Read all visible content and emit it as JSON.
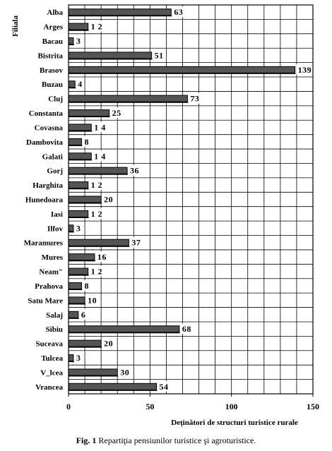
{
  "chart_data": {
    "type": "bar",
    "orientation": "horizontal",
    "ylabel": "Filiala",
    "xlabel": "Deţinători de structuri turistice rurale",
    "xlim": [
      0,
      150
    ],
    "xticks": [
      0,
      50,
      100,
      150
    ],
    "grid": true,
    "legend": "none",
    "bar_color": "#555555",
    "categories": [
      "Alba",
      "Arges",
      "Bacau",
      "Bistrita",
      "Brasov",
      "Buzau",
      "Cluj",
      "Constanta",
      "Covasna",
      "Dambovita",
      "Galati",
      "Gorj",
      "Harghita",
      "Hunedoara",
      "Iasi",
      "Ilfov",
      "Maramures",
      "Mures",
      "Neam\"",
      "Prahova",
      "Satu Mare",
      "Salaj",
      "Sibiu",
      "Suceava",
      "Tulcea",
      "V_lcea",
      "Vrancea"
    ],
    "values": [
      63,
      12,
      3,
      51,
      139,
      4,
      73,
      25,
      14,
      8,
      14,
      36,
      12,
      20,
      12,
      3,
      37,
      16,
      12,
      8,
      10,
      6,
      68,
      20,
      3,
      30,
      54
    ],
    "value_labels": [
      "63",
      "1 2",
      "3",
      "51",
      "139",
      "4",
      "73",
      "25",
      "1 4",
      "8",
      "1 4",
      "36",
      "1 2",
      "20",
      "1 2",
      "3",
      "37",
      "16",
      "1 2",
      "8",
      "10",
      "6",
      "68",
      "20",
      "3",
      "30",
      "54"
    ]
  },
  "caption": {
    "prefix": "Fig. 1",
    "text": " Repartiţia pensiunilor turistice şi agroturistice."
  }
}
